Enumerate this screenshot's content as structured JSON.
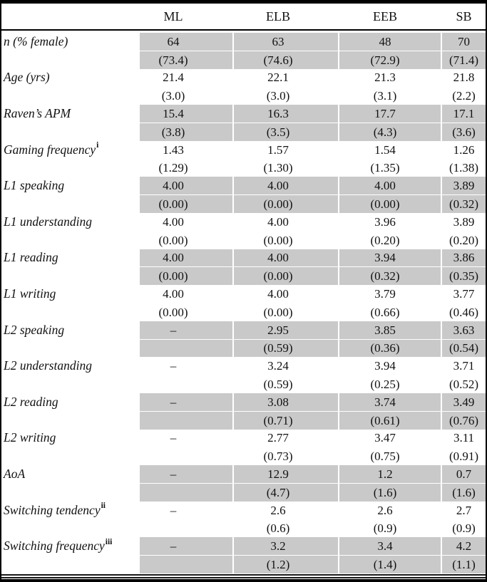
{
  "table": {
    "shade_color": "#c9c9c9",
    "columns": [
      "ML",
      "ELB",
      "EEB",
      "SB"
    ],
    "rows": [
      {
        "label": "n (% female)",
        "sup": "",
        "shaded": true,
        "values": [
          "64",
          "63",
          "48",
          "70"
        ],
        "sd": [
          "(73.4)",
          "(74.6)",
          "(72.9)",
          "(71.4)"
        ]
      },
      {
        "label": "Age (yrs)",
        "sup": "",
        "shaded": false,
        "values": [
          "21.4",
          "22.1",
          "21.3",
          "21.8"
        ],
        "sd": [
          "(3.0)",
          "(3.0)",
          "(3.1)",
          "(2.2)"
        ]
      },
      {
        "label": "Raven’s APM",
        "sup": "",
        "shaded": true,
        "values": [
          "15.4",
          "16.3",
          "17.7",
          "17.1"
        ],
        "sd": [
          "(3.8)",
          "(3.5)",
          "(4.3)",
          "(3.6)"
        ]
      },
      {
        "label": "Gaming frequency",
        "sup": "i",
        "shaded": false,
        "values": [
          "1.43",
          "1.57",
          "1.54",
          "1.26"
        ],
        "sd": [
          "(1.29)",
          "(1.30)",
          "(1.35)",
          "(1.38)"
        ]
      },
      {
        "label": "L1 speaking",
        "sup": "",
        "shaded": true,
        "values": [
          "4.00",
          "4.00",
          "4.00",
          "3.89"
        ],
        "sd": [
          "(0.00)",
          "(0.00)",
          "(0.00)",
          "(0.32)"
        ]
      },
      {
        "label": "L1 understanding",
        "sup": "",
        "shaded": false,
        "values": [
          "4.00",
          "4.00",
          "3.96",
          "3.89"
        ],
        "sd": [
          "(0.00)",
          "(0.00)",
          "(0.20)",
          "(0.20)"
        ]
      },
      {
        "label": "L1 reading",
        "sup": "",
        "shaded": true,
        "values": [
          "4.00",
          "4.00",
          "3.94",
          "3.86"
        ],
        "sd": [
          "(0.00)",
          "(0.00)",
          "(0.32)",
          "(0.35)"
        ]
      },
      {
        "label": "L1 writing",
        "sup": "",
        "shaded": false,
        "values": [
          "4.00",
          "4.00",
          "3.79",
          "3.77"
        ],
        "sd": [
          "(0.00)",
          "(0.00)",
          "(0.66)",
          "(0.46)"
        ]
      },
      {
        "label": "L2 speaking",
        "sup": "",
        "shaded": true,
        "values": [
          "–",
          "2.95",
          "3.85",
          "3.63"
        ],
        "sd": [
          "",
          "(0.59)",
          "(0.36)",
          "(0.54)"
        ]
      },
      {
        "label": "L2 understanding",
        "sup": "",
        "shaded": false,
        "values": [
          "–",
          "3.24",
          "3.94",
          "3.71"
        ],
        "sd": [
          "",
          "(0.59)",
          "(0.25)",
          "(0.52)"
        ]
      },
      {
        "label": "L2 reading",
        "sup": "",
        "shaded": true,
        "values": [
          "–",
          "3.08",
          "3.74",
          "3.49"
        ],
        "sd": [
          "",
          "(0.71)",
          "(0.61)",
          "(0.76)"
        ]
      },
      {
        "label": "L2 writing",
        "sup": "",
        "shaded": false,
        "values": [
          "–",
          "2.77",
          "3.47",
          "3.11"
        ],
        "sd": [
          "",
          "(0.73)",
          "(0.75)",
          "(0.91)"
        ]
      },
      {
        "label": "AoA",
        "sup": "",
        "shaded": true,
        "values": [
          "–",
          "12.9",
          "1.2",
          "0.7"
        ],
        "sd": [
          "",
          "(4.7)",
          "(1.6)",
          "(1.6)"
        ]
      },
      {
        "label": "Switching tendency",
        "sup": "ii",
        "shaded": false,
        "values": [
          "–",
          "2.6",
          "2.6",
          "2.7"
        ],
        "sd": [
          "",
          "(0.6)",
          "(0.9)",
          "(0.9)"
        ]
      },
      {
        "label": "Switching frequency",
        "sup": "iii",
        "shaded": true,
        "values": [
          "–",
          "3.2",
          "3.4",
          "4.2"
        ],
        "sd": [
          "",
          "(1.2)",
          "(1.4)",
          "(1.1)"
        ]
      }
    ]
  }
}
